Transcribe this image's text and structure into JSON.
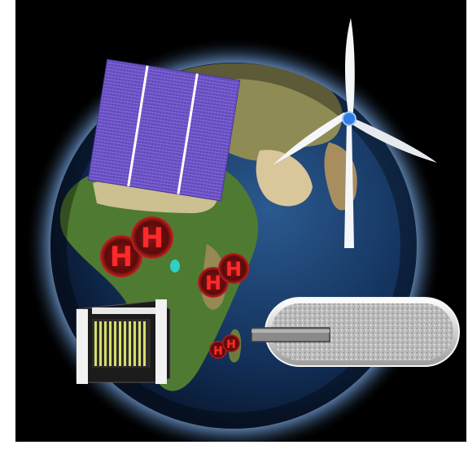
{
  "scene": {
    "background_color": "#000000",
    "page_background": "#ffffff",
    "globe_glow_color": "#cfe8ff",
    "ocean_color": "#12305a",
    "land_colors": [
      "#3f6a2a",
      "#a88d5f",
      "#d9c69a"
    ],
    "elements": [
      "earth-globe",
      "solar-panel",
      "wind-turbine",
      "hydrogen-molecules",
      "fuel-cell-stack",
      "hydrogen-storage-tank"
    ]
  },
  "hydrogen": {
    "letter": "H",
    "bubble_color": "#7a1010",
    "letter_color": "#ff2a2a"
  },
  "solar_panel": {
    "cell_color": "#6f55c7",
    "busbar_color": "#ffffff"
  },
  "wind_turbine": {
    "blade_color": "#f4f6f8",
    "hub_color": "#2f7de0"
  },
  "fuel_cell": {
    "plate_color": "#f2f2f2",
    "membrane_color": "#d7dd6a"
  },
  "storage_tank": {
    "shell_color": "#e6e6e6",
    "fill_color": "#b9b9b9",
    "pipe_color": "#8a8a8a"
  }
}
